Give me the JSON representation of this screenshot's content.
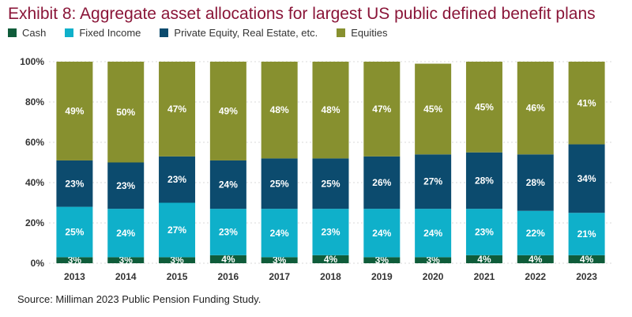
{
  "title": "Exhibit 8: Aggregate asset allocations for largest US public defined benefit plans",
  "source": "Source: Milliman 2023 Public Pension Funding Study.",
  "legend": [
    {
      "label": "Cash",
      "color": "#0f5c3a"
    },
    {
      "label": "Fixed Income",
      "color": "#0fb0ca"
    },
    {
      "label": "Private Equity, Real Estate, etc.",
      "color": "#0c4b6e"
    },
    {
      "label": "Equities",
      "color": "#87902f"
    }
  ],
  "chart_data": {
    "type": "bar",
    "stacked": true,
    "categories": [
      "2013",
      "2014",
      "2015",
      "2016",
      "2017",
      "2018",
      "2019",
      "2020",
      "2021",
      "2022",
      "2023"
    ],
    "series": [
      {
        "name": "Cash",
        "color": "#0f5c3a",
        "values": [
          3,
          3,
          3,
          4,
          3,
          4,
          3,
          3,
          4,
          4,
          4
        ]
      },
      {
        "name": "Fixed Income",
        "color": "#0fb0ca",
        "values": [
          25,
          24,
          27,
          23,
          24,
          23,
          24,
          24,
          23,
          22,
          21
        ]
      },
      {
        "name": "Private Equity, Real Estate, etc.",
        "color": "#0c4b6e",
        "values": [
          23,
          23,
          23,
          24,
          25,
          25,
          26,
          27,
          28,
          28,
          34
        ]
      },
      {
        "name": "Equities",
        "color": "#87902f",
        "values": [
          49,
          50,
          47,
          49,
          48,
          48,
          47,
          45,
          45,
          46,
          41
        ]
      }
    ],
    "yticks": [
      "0%",
      "20%",
      "40%",
      "60%",
      "80%",
      "100%"
    ],
    "ylim": [
      0,
      100
    ],
    "grid": true,
    "legend_position": "top-left"
  }
}
